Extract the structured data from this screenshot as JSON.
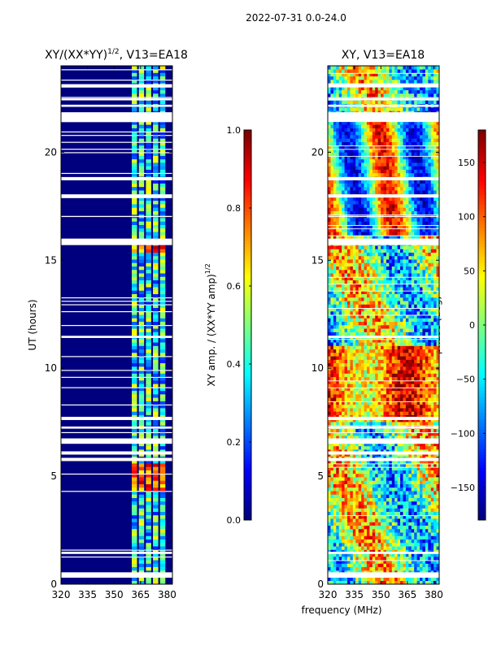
{
  "suptitle": "2022-07-31 0.0-24.0",
  "colors": {
    "jet": [
      "#00007f",
      "#0000ff",
      "#007fff",
      "#00ffff",
      "#7fff7f",
      "#ffff00",
      "#ff7f00",
      "#ff0000",
      "#7f0000"
    ],
    "background": "#ffffff"
  },
  "chart_data": [
    {
      "type": "heatmap",
      "title": "XY/(XX*YY)^1/2, V13=EA18",
      "title_main": "XY/(XX*YY)",
      "title_sup": "1/2",
      "title_tail": ", V13=EA18",
      "xlabel": "",
      "ylabel": "UT (hours)",
      "xlim": [
        320,
        383
      ],
      "ylim": [
        0,
        24
      ],
      "xticks": [
        320,
        335,
        350,
        365,
        380
      ],
      "yticks": [
        0,
        5,
        10,
        15,
        20
      ],
      "channel_groups_mhz": [
        [
          360,
          363
        ],
        [
          364,
          367
        ],
        [
          368,
          371
        ],
        [
          372,
          375
        ],
        [
          376,
          379
        ]
      ],
      "gap_intervals_ut": [
        [
          0.3,
          0.55
        ],
        [
          1.4,
          1.5
        ],
        [
          5.7,
          5.85
        ],
        [
          6.0,
          6.15
        ],
        [
          6.5,
          6.75
        ],
        [
          7.2,
          7.3
        ],
        [
          7.6,
          7.75
        ],
        [
          11.4,
          11.5
        ],
        [
          15.7,
          16.0
        ],
        [
          17.0,
          17.05
        ],
        [
          17.9,
          18.05
        ],
        [
          18.7,
          18.85
        ],
        [
          21.4,
          21.85
        ],
        [
          22.1,
          22.2
        ],
        [
          22.4,
          22.5
        ],
        [
          23.0,
          23.15
        ]
      ],
      "colorbar": {
        "label": "XY amp. / (XX*YY amp)^1/2",
        "label_main": "XY amp. / (XX*YY amp)",
        "label_sup": "1/2",
        "range": [
          0.0,
          1.0
        ],
        "ticks": [
          0.0,
          0.2,
          0.4,
          0.6,
          0.8,
          1.0
        ],
        "tick_labels": [
          "0.0",
          "0.2",
          "0.4",
          "0.6",
          "0.8",
          "1.0"
        ]
      }
    },
    {
      "type": "heatmap",
      "title": "XY, V13=EA18",
      "xlabel": "frequency (MHz)",
      "ylabel": "",
      "xlim": [
        320,
        383
      ],
      "ylim": [
        0,
        24
      ],
      "xticks": [
        320,
        335,
        350,
        365,
        380
      ],
      "yticks": [
        0,
        5,
        10,
        15,
        20
      ],
      "gap_intervals_ut": [
        [
          0.3,
          0.55
        ],
        [
          1.4,
          1.5
        ],
        [
          5.7,
          5.85
        ],
        [
          6.0,
          6.15
        ],
        [
          6.5,
          6.75
        ],
        [
          7.2,
          7.3
        ],
        [
          7.6,
          7.75
        ],
        [
          11.4,
          11.5
        ],
        [
          15.7,
          16.0
        ],
        [
          17.0,
          17.05
        ],
        [
          17.9,
          18.05
        ],
        [
          18.7,
          18.85
        ],
        [
          21.4,
          21.85
        ],
        [
          22.1,
          22.2
        ],
        [
          22.4,
          22.5
        ],
        [
          23.0,
          23.15
        ]
      ],
      "colorbar": {
        "label": "phase (deg)",
        "range": [
          -180,
          180
        ],
        "ticks": [
          -150,
          -100,
          -50,
          0,
          50,
          100,
          150
        ],
        "tick_labels": [
          "−150",
          "−100",
          "−50",
          "0",
          "50",
          "100",
          "150"
        ]
      }
    }
  ]
}
